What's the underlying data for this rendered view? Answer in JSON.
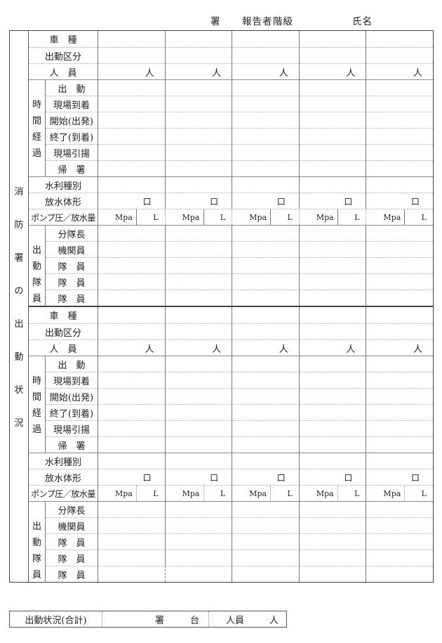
{
  "header": {
    "office": "署",
    "reporter": "報告者",
    "rank": "階級",
    "name": "氏名"
  },
  "side_title": {
    "text": "消防署の出動状況",
    "chars": [
      "消",
      "防",
      "署",
      "の",
      "出",
      "動",
      "状",
      "況"
    ]
  },
  "row_labels": {
    "vehicle": "車　種",
    "dispatch_category": "出動区分",
    "personnel": "人　員",
    "time_group_chars": [
      "時",
      "間",
      "経",
      "過"
    ],
    "time_rows": [
      "出　動",
      "現場到着",
      "開始(出発)",
      "終了(到着)",
      "現場引揚",
      "帰　署"
    ],
    "water_source": "水利種別",
    "discharge_form": "放水体形",
    "pump": "ポンプ圧／放水量",
    "crew_group_chars": [
      "出",
      "動",
      "隊",
      "員"
    ],
    "crew_rows": [
      "分隊長",
      "機関員",
      "隊　員",
      "隊　員",
      "隊　員"
    ]
  },
  "units": {
    "person": "人",
    "nozzle": "口",
    "pressure": "Mpa",
    "volume": "L"
  },
  "summary": {
    "label": "出動状況(合計)",
    "office_unit": "署",
    "vehicle_unit": "台",
    "personnel_label": "人員",
    "person_unit": "人"
  },
  "layout": {
    "columns": 5,
    "blocks": 2
  },
  "colors": {
    "outer_border": "#444444",
    "solid_line": "#777777",
    "dotted_line": "#a9a9a9",
    "text": "#222222",
    "background": "#ffffff"
  }
}
